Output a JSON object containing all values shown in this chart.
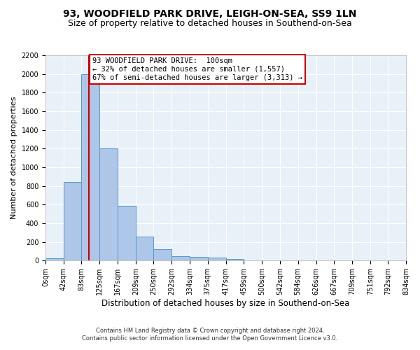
{
  "title_line1": "93, WOODFIELD PARK DRIVE, LEIGH-ON-SEA, SS9 1LN",
  "title_line2": "Size of property relative to detached houses in Southend-on-Sea",
  "xlabel": "Distribution of detached houses by size in Southend-on-Sea",
  "ylabel": "Number of detached properties",
  "footnote1": "Contains HM Land Registry data © Crown copyright and database right 2024.",
  "footnote2": "Contains public sector information licensed under the Open Government Licence v3.0.",
  "bar_edges": [
    0,
    42,
    83,
    125,
    167,
    209,
    250,
    292,
    334,
    375,
    417,
    459,
    500,
    542,
    584,
    626,
    667,
    709,
    751,
    792,
    834
  ],
  "bar_heights": [
    25,
    840,
    2000,
    1200,
    590,
    260,
    120,
    50,
    40,
    35,
    20,
    0,
    0,
    0,
    0,
    0,
    0,
    0,
    0,
    0
  ],
  "bar_color": "#aec6e8",
  "bar_edge_color": "#5599cc",
  "red_line_x": 100,
  "annotation_text": "93 WOODFIELD PARK DRIVE:  100sqm\n← 32% of detached houses are smaller (1,557)\n67% of semi-detached houses are larger (3,313) →",
  "annotation_box_color": "#ffffff",
  "annotation_box_edge": "#cc0000",
  "ylim": [
    0,
    2200
  ],
  "yticks": [
    0,
    200,
    400,
    600,
    800,
    1000,
    1200,
    1400,
    1600,
    1800,
    2000,
    2200
  ],
  "background_color": "#e8f0f8",
  "grid_color": "#ffffff",
  "title_fontsize": 10,
  "subtitle_fontsize": 9,
  "tick_label_fontsize": 7,
  "ylabel_fontsize": 8,
  "xlabel_fontsize": 8.5,
  "annotation_fontsize": 7.5,
  "footnote_fontsize": 6
}
